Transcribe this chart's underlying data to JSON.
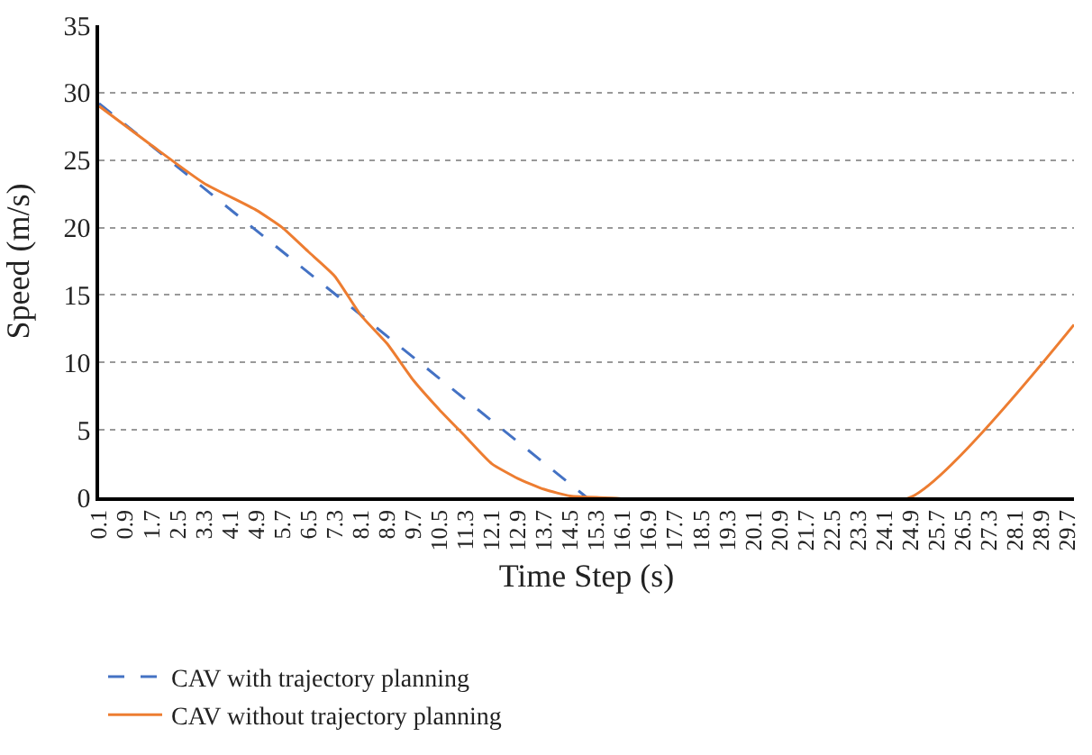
{
  "chart_data": {
    "type": "line",
    "xlabel": "Time Step (s)",
    "ylabel": "Speed (m/s)",
    "xlim": [
      0.1,
      29.9
    ],
    "xticks": [
      0.1,
      0.9,
      1.7,
      2.5,
      3.3,
      4.1,
      4.9,
      5.7,
      6.5,
      7.3,
      8.1,
      8.9,
      9.7,
      10.5,
      11.3,
      12.1,
      12.9,
      13.7,
      14.5,
      15.3,
      16.1,
      16.9,
      17.7,
      18.5,
      19.3,
      20.1,
      20.9,
      21.7,
      22.5,
      23.3,
      24.1,
      24.9,
      25.7,
      26.5,
      27.3,
      28.1,
      28.9,
      29.7
    ],
    "ylim": [
      0,
      35
    ],
    "yticks": [
      0,
      5,
      10,
      15,
      20,
      25,
      30,
      35
    ],
    "grid": "y",
    "legend": "bottom",
    "series": [
      {
        "name": "CAV with trajectory planning",
        "color": "#4472c4",
        "line_style": "dashed",
        "x": [
          0.1,
          15.0
        ],
        "values": [
          29.2,
          0
        ]
      },
      {
        "name": "CAV without trajectory planning",
        "color": "#ed7d31",
        "line_style": "solid",
        "x": [
          0.1,
          1.7,
          3.3,
          4.9,
          5.7,
          6.5,
          7.3,
          8.1,
          8.9,
          9.7,
          10.5,
          11.3,
          12.1,
          12.9,
          13.7,
          14.5,
          15.3,
          24.9,
          29.9
        ],
        "values": [
          29,
          26.1,
          23.3,
          21.3,
          20,
          18.2,
          16.4,
          13.5,
          11.4,
          8.7,
          6.5,
          4.5,
          2.5,
          1.4,
          0.6,
          0.1,
          0,
          0,
          12.8
        ]
      }
    ]
  }
}
